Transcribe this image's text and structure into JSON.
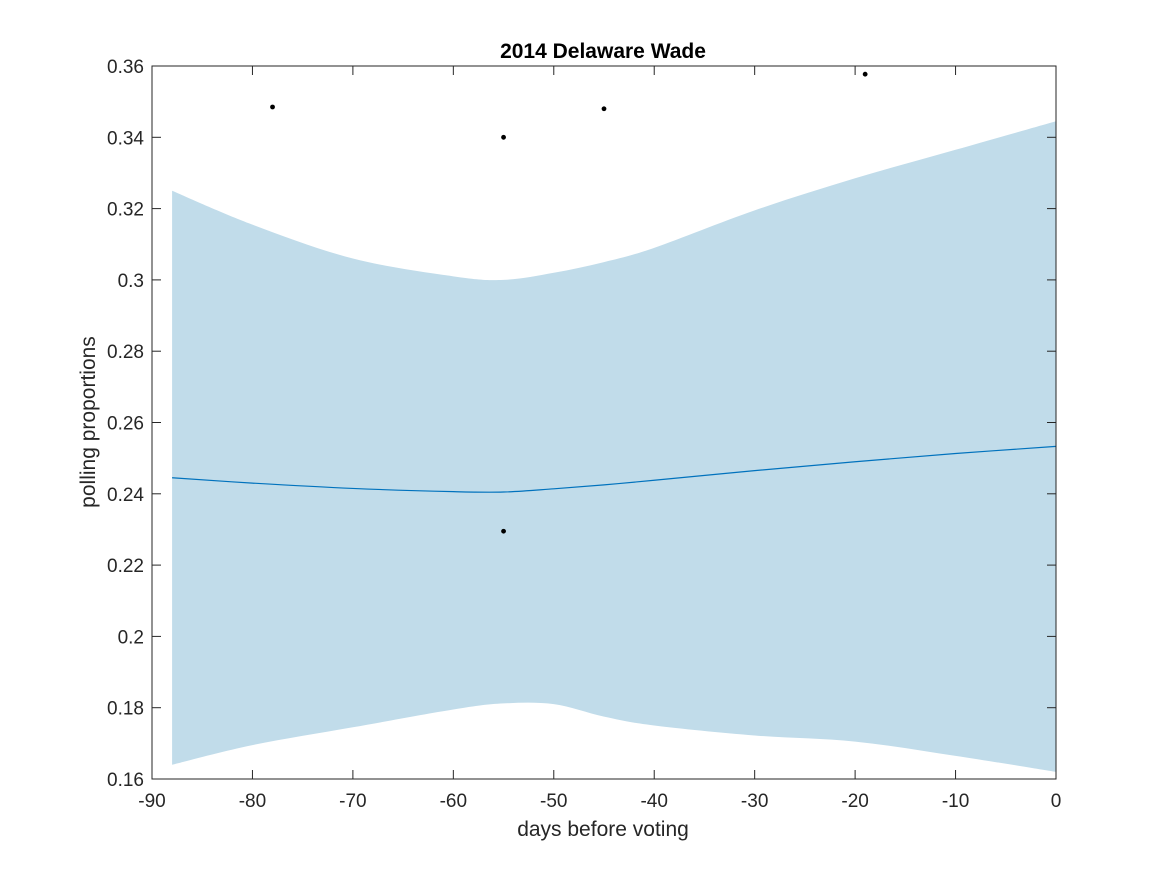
{
  "chart_data": {
    "type": "line",
    "title": "2014 Delaware Wade",
    "xlabel": "days before voting",
    "ylabel": "polling proportions",
    "xlim": [
      -90,
      0
    ],
    "ylim": [
      0.16,
      0.36
    ],
    "xticks": [
      -90,
      -80,
      -70,
      -60,
      -50,
      -40,
      -30,
      -20,
      -10,
      0
    ],
    "xtick_labels": [
      "-90",
      "-80",
      "-70",
      "-60",
      "-50",
      "-40",
      "-30",
      "-20",
      "-10",
      "0"
    ],
    "yticks": [
      0.16,
      0.18,
      0.2,
      0.22,
      0.24,
      0.26,
      0.28,
      0.3,
      0.32,
      0.34,
      0.36
    ],
    "ytick_labels": [
      "0.16",
      "0.18",
      "0.2",
      "0.22",
      "0.24",
      "0.26",
      "0.28",
      "0.3",
      "0.32",
      "0.34",
      "0.36"
    ],
    "grid": false,
    "colors": {
      "band": "#c1dcea",
      "line": "#0072bd",
      "points": "#000000",
      "axes": "#262626"
    },
    "band": {
      "x": [
        -88,
        -80,
        -70,
        -60,
        -55,
        -50,
        -45,
        -40,
        -30,
        -20,
        -10,
        0
      ],
      "upper": [
        0.325,
        0.3155,
        0.306,
        0.301,
        0.3,
        0.302,
        0.305,
        0.309,
        0.3195,
        0.3285,
        0.3365,
        0.3445
      ],
      "lower": [
        0.164,
        0.1695,
        0.1745,
        0.1795,
        0.1812,
        0.181,
        0.1775,
        0.175,
        0.1722,
        0.1705,
        0.1665,
        0.162
      ]
    },
    "series": [
      {
        "type": "line",
        "x": [
          -88,
          -80,
          -70,
          -60,
          -55,
          -50,
          -45,
          -40,
          -30,
          -20,
          -10,
          0
        ],
        "y": [
          0.2445,
          0.243,
          0.2415,
          0.2406,
          0.2405,
          0.2414,
          0.2425,
          0.2438,
          0.2465,
          0.249,
          0.2513,
          0.2533
        ]
      },
      {
        "type": "scatter",
        "x": [
          -78,
          -55,
          -55,
          -45,
          -19
        ],
        "y": [
          0.3485,
          0.34,
          0.2295,
          0.348,
          0.3577
        ]
      }
    ]
  }
}
